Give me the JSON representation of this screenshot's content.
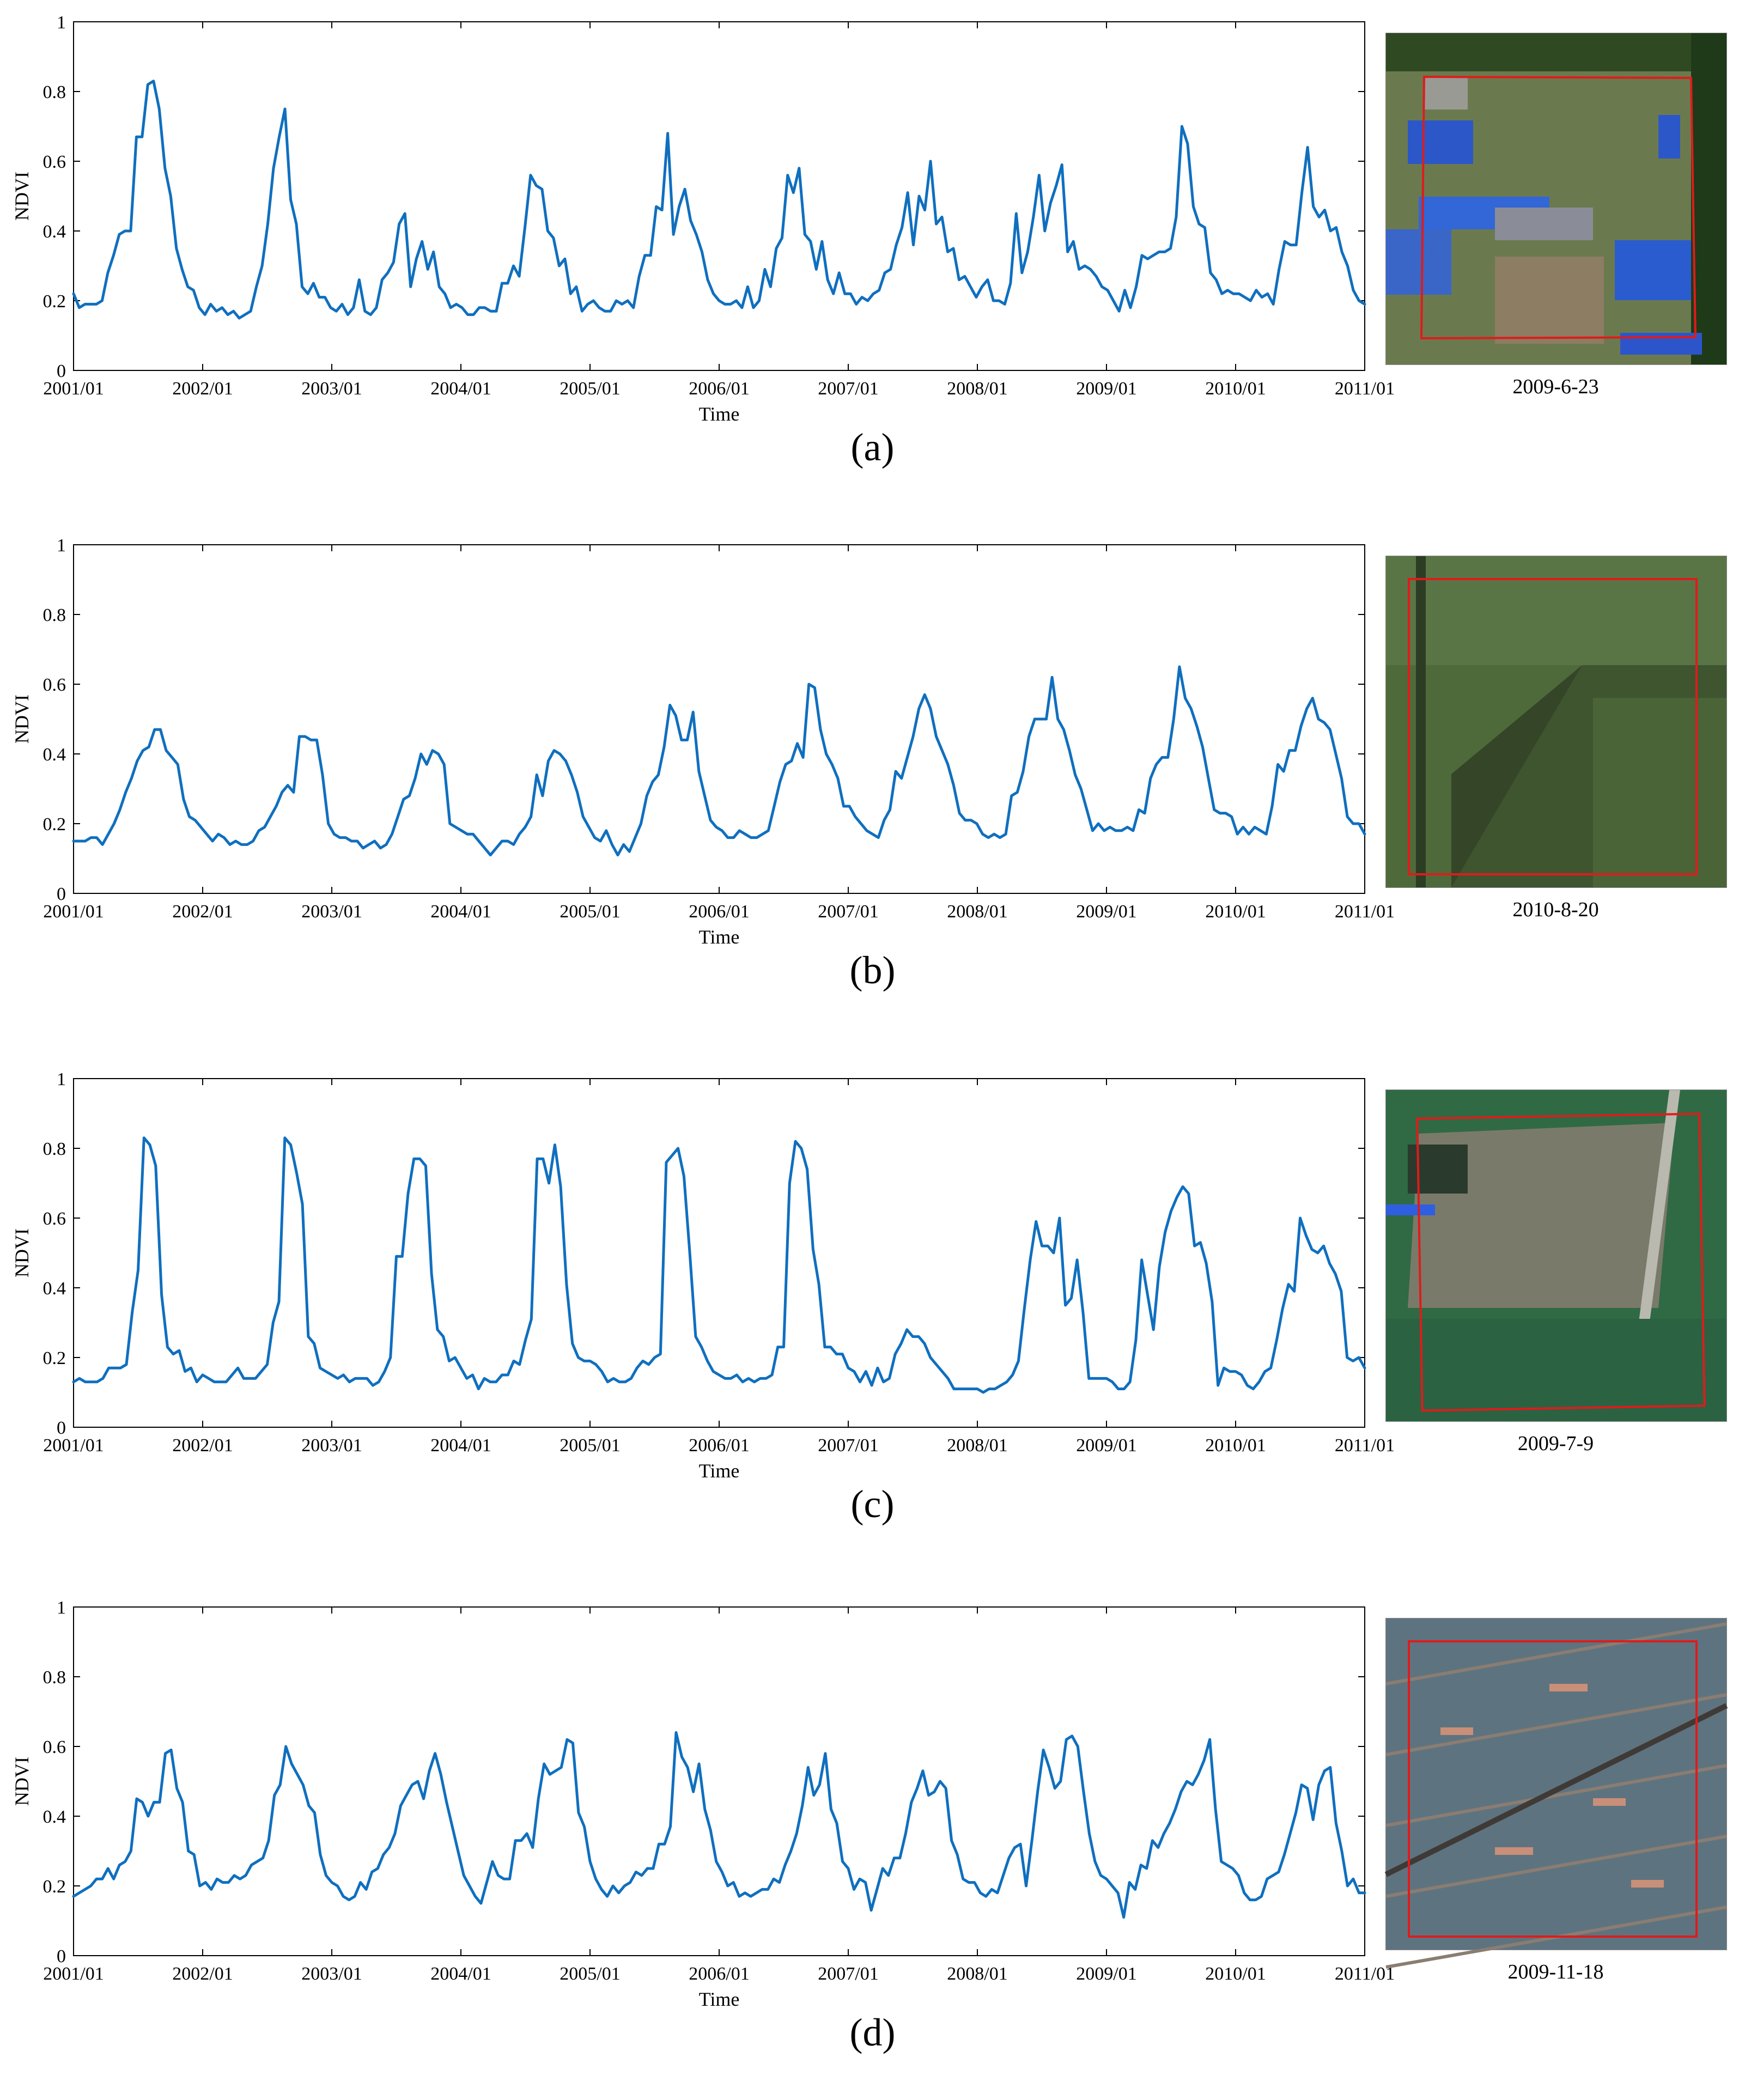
{
  "chart_data": [
    {
      "type": "line",
      "panel_label": "(a)",
      "image_date": "2009-6-23",
      "xlabel": "Time",
      "ylabel": "NDVI",
      "ylim": [
        0,
        1
      ],
      "yticks": [
        "0",
        "0.2",
        "0.4",
        "0.6",
        "0.8",
        "1"
      ],
      "xlim": [
        "2001/01",
        "2011/01"
      ],
      "xticks": [
        "2001/01",
        "2002/01",
        "2003/01",
        "2004/01",
        "2005/01",
        "2006/01",
        "2007/01",
        "2008/01",
        "2009/01",
        "2010/01",
        "2011/01"
      ],
      "series": [
        {
          "values": [
            0.22,
            0.18,
            0.19,
            0.19,
            0.19,
            0.2,
            0.28,
            0.33,
            0.39,
            0.4,
            0.4,
            0.67,
            0.67,
            0.82,
            0.83,
            0.75,
            0.58,
            0.5,
            0.35,
            0.29,
            0.24,
            0.23,
            0.18,
            0.16,
            0.19,
            0.17,
            0.18,
            0.16,
            0.17,
            0.15,
            0.16,
            0.17,
            0.24,
            0.3,
            0.42,
            0.58,
            0.67,
            0.75,
            0.49,
            0.42,
            0.24,
            0.22,
            0.25,
            0.21,
            0.21,
            0.18,
            0.17,
            0.19,
            0.16,
            0.18,
            0.26,
            0.17,
            0.16,
            0.18,
            0.26,
            0.28,
            0.31,
            0.42,
            0.45,
            0.24,
            0.32,
            0.37,
            0.29,
            0.34,
            0.24,
            0.22,
            0.18,
            0.19,
            0.18,
            0.16,
            0.16,
            0.18,
            0.18,
            0.17,
            0.17,
            0.25,
            0.25,
            0.3,
            0.27,
            0.41,
            0.56,
            0.53,
            0.52,
            0.4,
            0.38,
            0.3,
            0.32,
            0.22,
            0.24,
            0.17,
            0.19,
            0.2,
            0.18,
            0.17,
            0.17,
            0.2,
            0.19,
            0.2,
            0.18,
            0.27,
            0.33,
            0.33,
            0.47,
            0.46,
            0.68,
            0.39,
            0.47,
            0.52,
            0.43,
            0.39,
            0.34,
            0.26,
            0.22,
            0.2,
            0.19,
            0.19,
            0.2,
            0.18,
            0.24,
            0.18,
            0.2,
            0.29,
            0.24,
            0.35,
            0.38,
            0.56,
            0.51,
            0.58,
            0.39,
            0.37,
            0.29,
            0.37,
            0.26,
            0.22,
            0.28,
            0.22,
            0.22,
            0.19,
            0.21,
            0.2,
            0.22,
            0.23,
            0.28,
            0.29,
            0.36,
            0.41,
            0.51,
            0.36,
            0.5,
            0.46,
            0.6,
            0.42,
            0.44,
            0.34,
            0.35,
            0.26,
            0.27,
            0.24,
            0.21,
            0.24,
            0.26,
            0.2,
            0.2,
            0.19,
            0.25,
            0.45,
            0.28,
            0.34,
            0.44,
            0.56,
            0.4,
            0.48,
            0.53,
            0.59,
            0.34,
            0.37,
            0.29,
            0.3,
            0.29,
            0.27,
            0.24,
            0.23,
            0.2,
            0.17,
            0.23,
            0.18,
            0.24,
            0.33,
            0.32,
            0.33,
            0.34,
            0.34,
            0.35,
            0.44,
            0.7,
            0.65,
            0.47,
            0.42,
            0.41,
            0.28,
            0.26,
            0.22,
            0.23,
            0.22,
            0.22,
            0.21,
            0.2,
            0.23,
            0.21,
            0.22,
            0.19,
            0.29,
            0.37,
            0.36,
            0.36,
            0.51,
            0.64,
            0.47,
            0.44,
            0.46,
            0.4,
            0.41,
            0.34,
            0.3,
            0.23,
            0.2,
            0.19
          ]
        }
      ]
    },
    {
      "type": "line",
      "panel_label": "(b)",
      "image_date": "2010-8-20",
      "xlabel": "Time",
      "ylabel": "NDVI",
      "ylim": [
        0,
        1
      ],
      "yticks": [
        "0",
        "0.2",
        "0.4",
        "0.6",
        "0.8",
        "1"
      ],
      "xlim": [
        "2001/01",
        "2011/01"
      ],
      "xticks": [
        "2001/01",
        "2002/01",
        "2003/01",
        "2004/01",
        "2005/01",
        "2006/01",
        "2007/01",
        "2008/01",
        "2009/01",
        "2010/01",
        "2011/01"
      ],
      "series": [
        {
          "values": [
            0.15,
            0.15,
            0.15,
            0.16,
            0.16,
            0.14,
            0.17,
            0.2,
            0.24,
            0.29,
            0.33,
            0.38,
            0.41,
            0.42,
            0.47,
            0.47,
            0.41,
            0.39,
            0.37,
            0.27,
            0.22,
            0.21,
            0.19,
            0.17,
            0.15,
            0.17,
            0.16,
            0.14,
            0.15,
            0.14,
            0.14,
            0.15,
            0.18,
            0.19,
            0.22,
            0.25,
            0.29,
            0.31,
            0.29,
            0.45,
            0.45,
            0.44,
            0.44,
            0.34,
            0.2,
            0.17,
            0.16,
            0.16,
            0.15,
            0.15,
            0.13,
            0.14,
            0.15,
            0.13,
            0.14,
            0.17,
            0.22,
            0.27,
            0.28,
            0.33,
            0.4,
            0.37,
            0.41,
            0.4,
            0.37,
            0.2,
            0.19,
            0.18,
            0.17,
            0.17,
            0.15,
            0.13,
            0.11,
            0.13,
            0.15,
            0.15,
            0.14,
            0.17,
            0.19,
            0.22,
            0.34,
            0.28,
            0.38,
            0.41,
            0.4,
            0.38,
            0.34,
            0.29,
            0.22,
            0.19,
            0.16,
            0.15,
            0.18,
            0.14,
            0.11,
            0.14,
            0.12,
            0.16,
            0.2,
            0.28,
            0.32,
            0.34,
            0.42,
            0.54,
            0.51,
            0.44,
            0.44,
            0.52,
            0.35,
            0.28,
            0.21,
            0.19,
            0.18,
            0.16,
            0.16,
            0.18,
            0.17,
            0.16,
            0.16,
            0.17,
            0.18,
            0.25,
            0.32,
            0.37,
            0.38,
            0.43,
            0.39,
            0.6,
            0.59,
            0.47,
            0.4,
            0.37,
            0.33,
            0.25,
            0.25,
            0.22,
            0.2,
            0.18,
            0.17,
            0.16,
            0.21,
            0.24,
            0.35,
            0.33,
            0.39,
            0.45,
            0.53,
            0.57,
            0.53,
            0.45,
            0.41,
            0.37,
            0.31,
            0.23,
            0.21,
            0.21,
            0.2,
            0.17,
            0.16,
            0.17,
            0.16,
            0.17,
            0.28,
            0.29,
            0.35,
            0.45,
            0.5,
            0.5,
            0.5,
            0.62,
            0.5,
            0.47,
            0.41,
            0.34,
            0.3,
            0.24,
            0.18,
            0.2,
            0.18,
            0.19,
            0.18,
            0.18,
            0.19,
            0.18,
            0.24,
            0.23,
            0.33,
            0.37,
            0.39,
            0.39,
            0.5,
            0.65,
            0.56,
            0.53,
            0.48,
            0.42,
            0.33,
            0.24,
            0.23,
            0.23,
            0.22,
            0.17,
            0.19,
            0.17,
            0.19,
            0.18,
            0.17,
            0.25,
            0.37,
            0.35,
            0.41,
            0.41,
            0.48,
            0.53,
            0.56,
            0.5,
            0.49,
            0.47,
            0.4,
            0.33,
            0.22,
            0.2,
            0.2,
            0.17
          ]
        }
      ]
    },
    {
      "type": "line",
      "panel_label": "(c)",
      "image_date": "2009-7-9",
      "xlabel": "Time",
      "ylabel": "NDVI",
      "ylim": [
        0,
        1
      ],
      "yticks": [
        "0",
        "0.2",
        "0.4",
        "0.6",
        "0.8",
        "1"
      ],
      "xlim": [
        "2001/01",
        "2011/01"
      ],
      "xticks": [
        "2001/01",
        "2002/01",
        "2003/01",
        "2004/01",
        "2005/01",
        "2006/01",
        "2007/01",
        "2008/01",
        "2009/01",
        "2010/01",
        "2011/01"
      ],
      "series": [
        {
          "values": [
            0.13,
            0.14,
            0.13,
            0.13,
            0.13,
            0.14,
            0.17,
            0.17,
            0.17,
            0.18,
            0.33,
            0.45,
            0.83,
            0.81,
            0.75,
            0.38,
            0.23,
            0.21,
            0.22,
            0.16,
            0.17,
            0.13,
            0.15,
            0.14,
            0.13,
            0.13,
            0.13,
            0.15,
            0.17,
            0.14,
            0.14,
            0.14,
            0.16,
            0.18,
            0.3,
            0.36,
            0.83,
            0.81,
            0.73,
            0.64,
            0.26,
            0.24,
            0.17,
            0.16,
            0.15,
            0.14,
            0.15,
            0.13,
            0.14,
            0.14,
            0.14,
            0.12,
            0.13,
            0.16,
            0.2,
            0.49,
            0.49,
            0.67,
            0.77,
            0.77,
            0.75,
            0.44,
            0.28,
            0.26,
            0.19,
            0.2,
            0.17,
            0.14,
            0.15,
            0.11,
            0.14,
            0.13,
            0.13,
            0.15,
            0.15,
            0.19,
            0.18,
            0.25,
            0.31,
            0.77,
            0.77,
            0.7,
            0.81,
            0.69,
            0.41,
            0.24,
            0.2,
            0.19,
            0.19,
            0.18,
            0.16,
            0.13,
            0.14,
            0.13,
            0.13,
            0.14,
            0.17,
            0.19,
            0.18,
            0.2,
            0.21,
            0.76,
            0.78,
            0.8,
            0.72,
            0.5,
            0.26,
            0.23,
            0.19,
            0.16,
            0.15,
            0.14,
            0.14,
            0.15,
            0.13,
            0.14,
            0.13,
            0.14,
            0.14,
            0.15,
            0.23,
            0.23,
            0.7,
            0.82,
            0.8,
            0.74,
            0.51,
            0.41,
            0.23,
            0.23,
            0.21,
            0.21,
            0.17,
            0.16,
            0.13,
            0.16,
            0.12,
            0.17,
            0.13,
            0.14,
            0.21,
            0.24,
            0.28,
            0.26,
            0.26,
            0.24,
            0.2,
            0.18,
            0.16,
            0.14,
            0.11,
            0.11,
            0.11,
            0.11,
            0.11,
            0.1,
            0.11,
            0.11,
            0.12,
            0.13,
            0.15,
            0.19,
            0.34,
            0.48,
            0.59,
            0.52,
            0.52,
            0.5,
            0.6,
            0.35,
            0.37,
            0.48,
            0.33,
            0.14,
            0.14,
            0.14,
            0.14,
            0.13,
            0.11,
            0.11,
            0.13,
            0.25,
            0.48,
            0.38,
            0.28,
            0.46,
            0.56,
            0.62,
            0.66,
            0.69,
            0.67,
            0.52,
            0.53,
            0.47,
            0.36,
            0.12,
            0.17,
            0.16,
            0.16,
            0.15,
            0.12,
            0.11,
            0.13,
            0.16,
            0.17,
            0.25,
            0.34,
            0.41,
            0.39,
            0.6,
            0.55,
            0.51,
            0.5,
            0.52,
            0.47,
            0.44,
            0.39,
            0.2,
            0.19,
            0.2,
            0.17
          ]
        }
      ]
    },
    {
      "type": "line",
      "panel_label": "(d)",
      "image_date": "2009-11-18",
      "xlabel": "Time",
      "ylabel": "NDVI",
      "ylim": [
        0,
        1
      ],
      "yticks": [
        "0",
        "0.2",
        "0.4",
        "0.6",
        "0.8",
        "1"
      ],
      "xlim": [
        "2001/01",
        "2011/01"
      ],
      "xticks": [
        "2001/01",
        "2002/01",
        "2003/01",
        "2004/01",
        "2005/01",
        "2006/01",
        "2007/01",
        "2008/01",
        "2009/01",
        "2010/01",
        "2011/01"
      ],
      "series": [
        {
          "values": [
            0.17,
            0.18,
            0.19,
            0.2,
            0.22,
            0.22,
            0.25,
            0.22,
            0.26,
            0.27,
            0.3,
            0.45,
            0.44,
            0.4,
            0.44,
            0.44,
            0.58,
            0.59,
            0.48,
            0.44,
            0.3,
            0.29,
            0.2,
            0.21,
            0.19,
            0.22,
            0.21,
            0.21,
            0.23,
            0.22,
            0.23,
            0.26,
            0.27,
            0.28,
            0.33,
            0.46,
            0.49,
            0.6,
            0.55,
            0.52,
            0.49,
            0.43,
            0.41,
            0.29,
            0.23,
            0.21,
            0.2,
            0.17,
            0.16,
            0.17,
            0.21,
            0.19,
            0.24,
            0.25,
            0.29,
            0.31,
            0.35,
            0.43,
            0.46,
            0.49,
            0.5,
            0.45,
            0.53,
            0.58,
            0.52,
            0.44,
            0.37,
            0.3,
            0.23,
            0.2,
            0.17,
            0.15,
            0.21,
            0.27,
            0.23,
            0.22,
            0.22,
            0.33,
            0.33,
            0.35,
            0.31,
            0.45,
            0.55,
            0.52,
            0.53,
            0.54,
            0.62,
            0.61,
            0.41,
            0.37,
            0.27,
            0.22,
            0.19,
            0.17,
            0.2,
            0.18,
            0.2,
            0.21,
            0.24,
            0.23,
            0.25,
            0.25,
            0.32,
            0.32,
            0.37,
            0.64,
            0.57,
            0.54,
            0.47,
            0.55,
            0.42,
            0.36,
            0.27,
            0.24,
            0.2,
            0.21,
            0.17,
            0.18,
            0.17,
            0.18,
            0.19,
            0.19,
            0.22,
            0.21,
            0.26,
            0.3,
            0.35,
            0.43,
            0.54,
            0.46,
            0.49,
            0.58,
            0.42,
            0.38,
            0.27,
            0.25,
            0.19,
            0.22,
            0.21,
            0.13,
            0.19,
            0.25,
            0.23,
            0.28,
            0.28,
            0.35,
            0.44,
            0.48,
            0.53,
            0.46,
            0.47,
            0.5,
            0.48,
            0.33,
            0.29,
            0.22,
            0.21,
            0.21,
            0.18,
            0.17,
            0.19,
            0.18,
            0.23,
            0.28,
            0.31,
            0.32,
            0.2,
            0.33,
            0.47,
            0.59,
            0.54,
            0.48,
            0.5,
            0.62,
            0.63,
            0.6,
            0.47,
            0.35,
            0.27,
            0.23,
            0.22,
            0.2,
            0.18,
            0.11,
            0.21,
            0.19,
            0.26,
            0.25,
            0.33,
            0.31,
            0.35,
            0.38,
            0.42,
            0.47,
            0.5,
            0.49,
            0.52,
            0.56,
            0.62,
            0.42,
            0.27,
            0.26,
            0.25,
            0.23,
            0.18,
            0.16,
            0.16,
            0.17,
            0.22,
            0.23,
            0.24,
            0.29,
            0.35,
            0.41,
            0.49,
            0.48,
            0.39,
            0.49,
            0.53,
            0.54,
            0.38,
            0.3,
            0.2,
            0.22,
            0.18,
            0.18
          ]
        }
      ]
    }
  ]
}
